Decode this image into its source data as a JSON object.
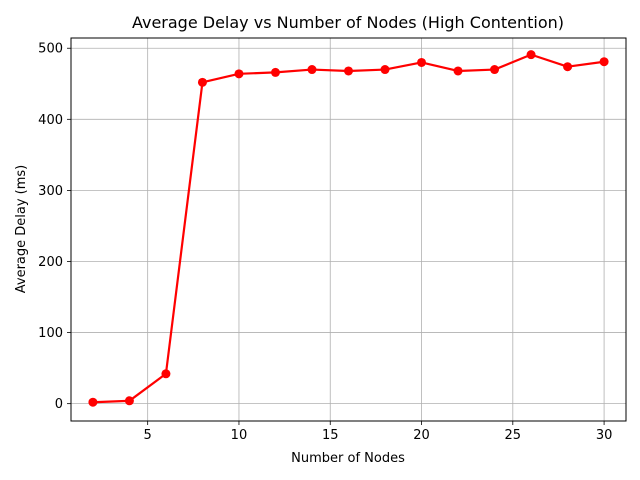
{
  "chart_data": {
    "type": "line",
    "title": "Average Delay vs Number of Nodes (High Contention)",
    "xlabel": "Number of Nodes",
    "ylabel": "Average Delay (ms)",
    "xlim": [
      0.8,
      31.2
    ],
    "ylim": [
      -24.4,
      514.4
    ],
    "xticks": [
      5,
      10,
      15,
      20,
      25,
      30
    ],
    "yticks": [
      0,
      100,
      200,
      300,
      400,
      500
    ],
    "grid": true,
    "series": [
      {
        "color": "#ff0000",
        "marker": "circle",
        "x": [
          2,
          4,
          6,
          8,
          10,
          12,
          14,
          16,
          18,
          20,
          22,
          24,
          26,
          28,
          30
        ],
        "y": [
          2,
          4,
          42,
          452,
          464,
          466,
          470,
          468,
          470,
          480,
          468,
          470,
          491,
          474,
          481
        ]
      }
    ]
  }
}
